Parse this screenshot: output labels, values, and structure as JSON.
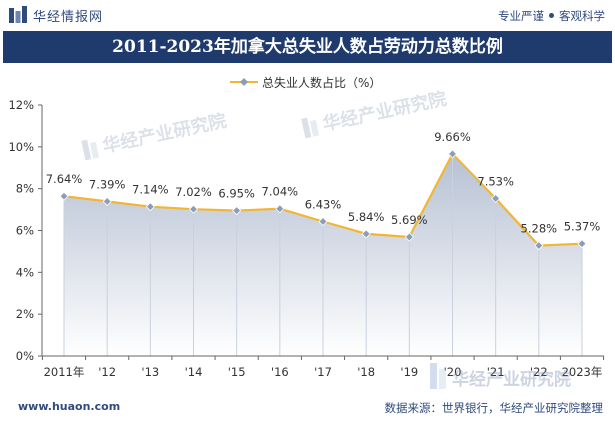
{
  "header": {
    "brand": "华经情报网",
    "tagline_left": "专业严谨",
    "tagline_right": "客观科学"
  },
  "title": "2011-2023年加拿大总失业人数占劳动力总数比例",
  "footer": {
    "url": "www.huaon.com",
    "source": "数据来源：世界银行，华经产业研究院整理",
    "watermark_brand": "华经产业研究院"
  },
  "colors": {
    "header_bg": "#1f3b6e",
    "line": "#f2b632",
    "marker": "#8c9db8",
    "area_top": "#aab6cc",
    "area_bottom": "#ffffff"
  },
  "chart_data": {
    "type": "area",
    "title": "2011-2023年加拿大总失业人数占劳动力总数比例",
    "categories": [
      "2011年",
      "'12",
      "'13",
      "'14",
      "'15",
      "'16",
      "'17",
      "'18",
      "'19",
      "'20",
      "'21",
      "'22",
      "2023年"
    ],
    "series": [
      {
        "name": "总失业人数占比（%）",
        "values": [
          7.64,
          7.39,
          7.14,
          7.02,
          6.95,
          7.04,
          6.43,
          5.84,
          5.69,
          9.66,
          7.53,
          5.28,
          5.37
        ],
        "labels": [
          "7.64%",
          "7.39%",
          "7.14%",
          "7.02%",
          "6.95%",
          "7.04%",
          "6.43%",
          "5.84%",
          "5.69%",
          "9.66%",
          "7.53%",
          "5.28%",
          "5.37%"
        ]
      }
    ],
    "ylim": [
      0,
      12
    ],
    "yticks": [
      0,
      2,
      4,
      6,
      8,
      10,
      12
    ],
    "ytick_labels": [
      "0%",
      "2%",
      "4%",
      "6%",
      "8%",
      "10%",
      "12%"
    ],
    "xlabel": "",
    "ylabel": "",
    "grid": false,
    "legend_position": "top-center"
  }
}
